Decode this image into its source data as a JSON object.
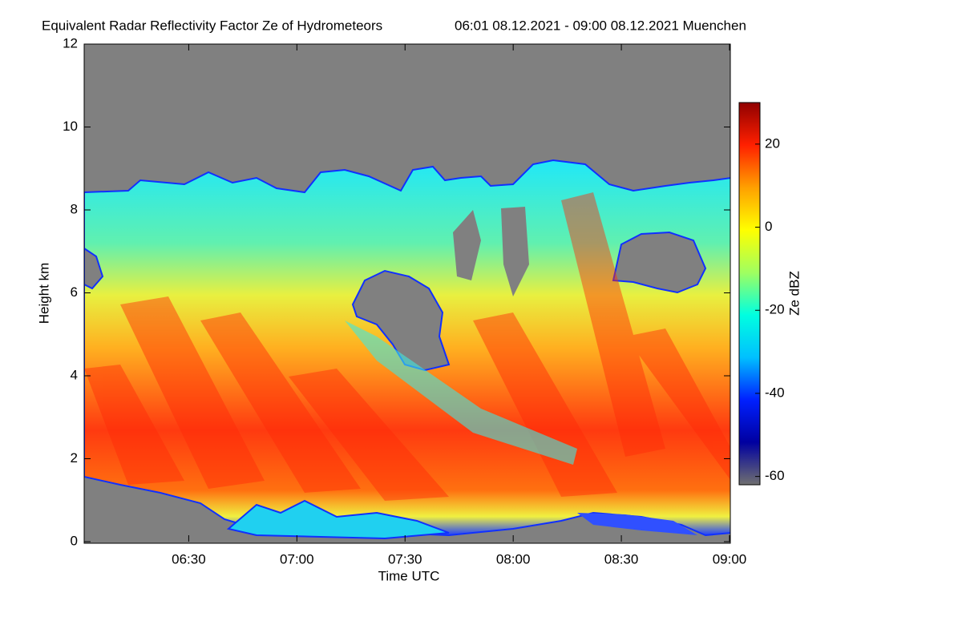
{
  "chart_data": {
    "type": "heatmap",
    "title": "Equivalent Radar Reflectivity Factor Ze of Hydrometeors",
    "subtitle": "06:01 08.12.2021 - 09:00 08.12.2021 Muenchen",
    "x_label": "Time UTC",
    "y_label": "Height km",
    "colorbar_label": "Ze dBZ",
    "xlim": [
      361,
      540
    ],
    "xticks": [
      {
        "value": 390,
        "label": "06:30"
      },
      {
        "value": 420,
        "label": "07:00"
      },
      {
        "value": 450,
        "label": "07:30"
      },
      {
        "value": 480,
        "label": "08:00"
      },
      {
        "value": 510,
        "label": "08:30"
      },
      {
        "value": 540,
        "label": "09:00"
      }
    ],
    "ylim": [
      0,
      12
    ],
    "yticks": [
      0,
      2,
      4,
      6,
      8,
      10,
      12
    ],
    "clim": [
      -62,
      30
    ],
    "cticks": [
      -60,
      -40,
      -20,
      0,
      20
    ],
    "colormap": [
      "#707070",
      "#0000a0",
      "#0020ff",
      "#00c0ff",
      "#00ffe0",
      "#a0ff60",
      "#ffff00",
      "#ffa000",
      "#ff2000",
      "#900000"
    ]
  }
}
